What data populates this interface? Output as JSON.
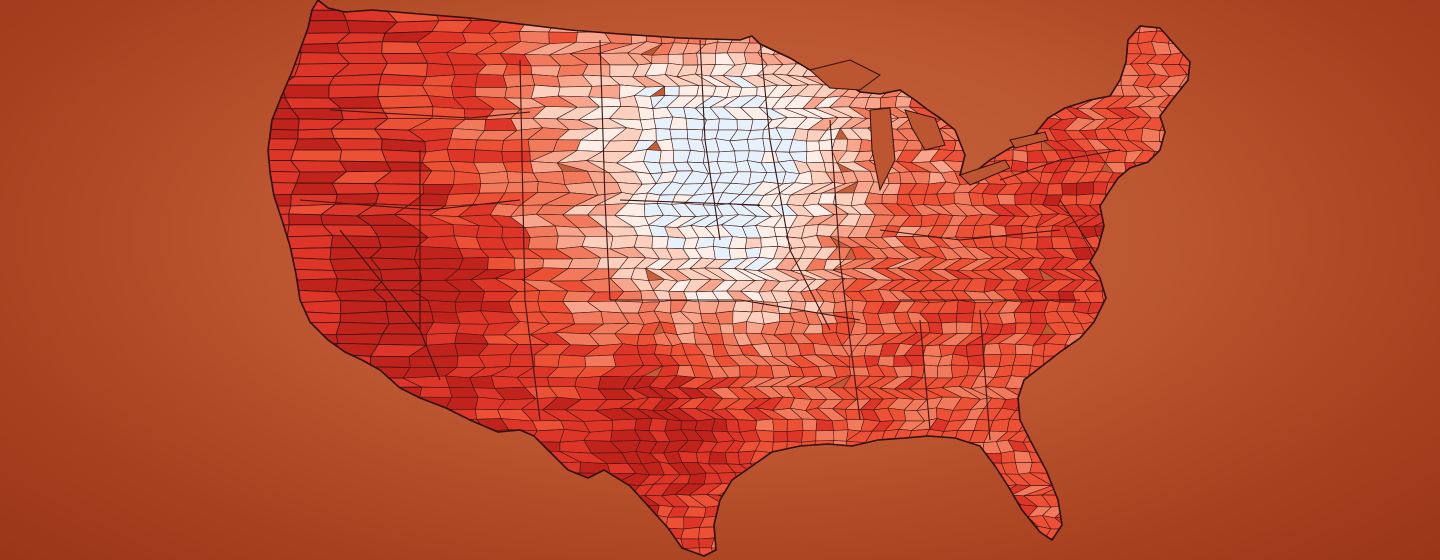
{
  "map": {
    "type": "choropleth",
    "region": "contiguous-united-states",
    "unit": "county",
    "colors": {
      "background_center": "#c8663f",
      "background_edge": "#9a3517",
      "border": "#3a1410",
      "scale": [
        "#e6f1fb",
        "#fdeee8",
        "#fcd0bf",
        "#f7a58c",
        "#f17a5c",
        "#ec5035",
        "#dd3527",
        "#c0221c"
      ]
    },
    "levels": [
      {
        "id": "level-0",
        "color": "#e6f1fb"
      },
      {
        "id": "level-1",
        "color": "#fdeee8"
      },
      {
        "id": "level-2",
        "color": "#fcd0bf"
      },
      {
        "id": "level-3",
        "color": "#f7a58c"
      },
      {
        "id": "level-4",
        "color": "#f17a5c"
      },
      {
        "id": "level-5",
        "color": "#ec5035"
      },
      {
        "id": "level-6",
        "color": "#dd3527"
      },
      {
        "id": "level-7",
        "color": "#c0221c"
      }
    ]
  }
}
